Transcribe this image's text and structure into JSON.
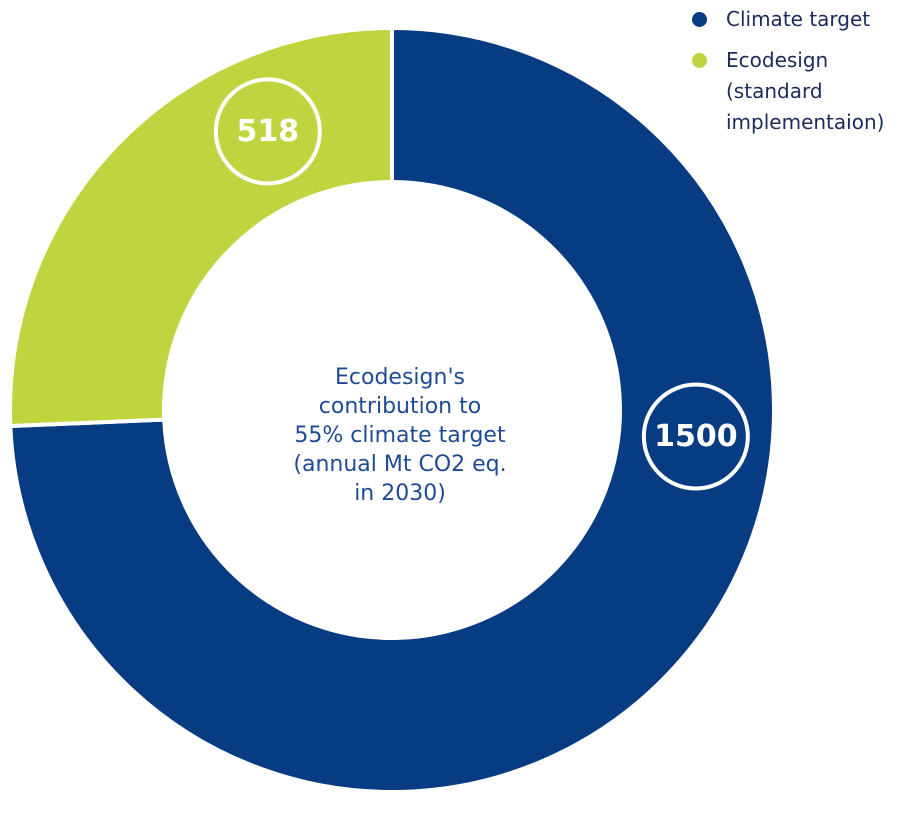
{
  "chart_data": {
    "type": "pie",
    "donut": true,
    "center_label": [
      "Ecodesign's",
      "contribution to",
      "55% climate target",
      "(annual Mt CO2 eq.",
      "in 2030)"
    ],
    "slices": [
      {
        "name": "Climate target",
        "value": 1500,
        "label": "1500",
        "color": "#073c82"
      },
      {
        "name": "Ecodesign",
        "value": 518,
        "label": "518",
        "color": "#bfd43f"
      }
    ],
    "legend": {
      "placement": "top-right",
      "items": [
        {
          "lines": [
            "Climate target"
          ],
          "color": "#073c82"
        },
        {
          "lines": [
            "Ecodesign",
            "(standard",
            "implementaion)"
          ],
          "color": "#bfd43f"
        }
      ]
    }
  }
}
